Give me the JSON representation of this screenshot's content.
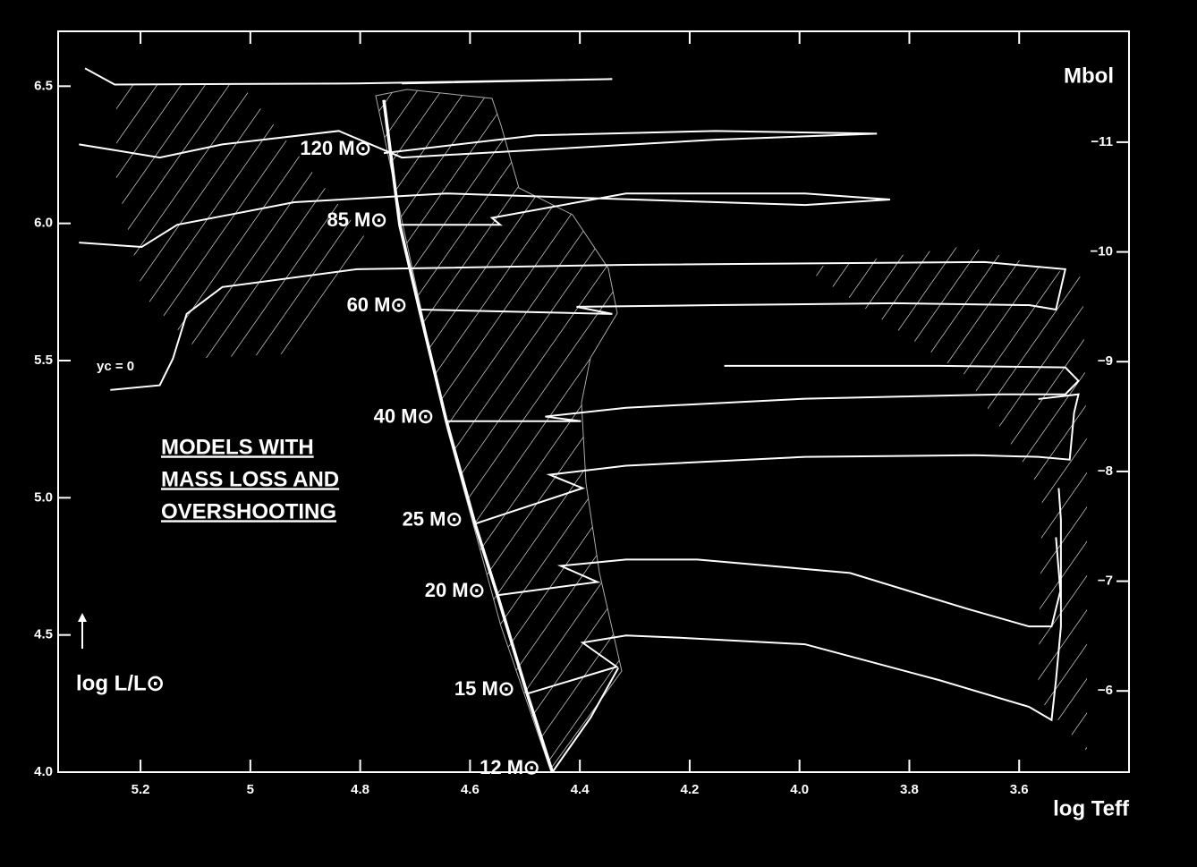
{
  "chart_data": {
    "type": "line",
    "x_label": "log Teff",
    "y_label": "log L/L⊙",
    "y2_label": "Mbol",
    "annotations": [
      "MODELS WITH",
      "MASS LOSS AND",
      "OVERSHOOTING",
      "yc = 0"
    ],
    "xlim": [
      5.35,
      3.4
    ],
    "xticks": [
      5.2,
      5.0,
      {
        "value": 4.8,
        "label": "4.8"
      },
      4.6,
      4.4,
      4.2,
      {
        "value": 4.0,
        "label": "4.0"
      },
      3.8,
      3.6
    ],
    "ylim": [
      4.0,
      6.7
    ],
    "yticks": [
      {
        "value": 4.0,
        "label": "4.0"
      },
      4.5,
      {
        "value": 5.0,
        "label": "5.0"
      },
      5.5,
      {
        "value": 6.0,
        "label": "6.0"
      },
      6.5
    ],
    "y2lim": [
      -5.26,
      -12.01
    ],
    "y2ticks": [
      {
        "value": -11,
        "label": "−11"
      },
      {
        "value": -10,
        "label": "−10"
      },
      {
        "value": -9,
        "label": "−9"
      },
      {
        "value": -8,
        "label": "−8"
      },
      {
        "value": -7,
        "label": "−7"
      },
      {
        "value": -6,
        "label": "−6"
      }
    ],
    "zams": {
      "x": [
        4.757,
        4.728,
        4.692,
        4.643,
        4.591,
        4.55,
        4.496,
        4.45
      ],
      "y": [
        6.45,
        5.995,
        5.686,
        5.279,
        4.905,
        4.645,
        4.286,
        4.0
      ]
    },
    "series": [
      {
        "name": "120 M⊙",
        "color": "#ffffff",
        "x": [
          4.757,
          4.48,
          4.153,
          3.859,
          4.153,
          4.724,
          4.839,
          5.051,
          5.165,
          5.312,
          null,
          5.301,
          5.247,
          4.806,
          4.341,
          4.724
        ],
        "y": [
          6.256,
          6.321,
          6.337,
          6.327,
          6.305,
          6.24,
          6.337,
          6.288,
          6.24,
          6.288,
          null,
          6.565,
          6.506,
          6.51,
          6.526,
          6.51
        ]
      },
      {
        "name": "85 M⊙",
        "color": "#ffffff",
        "x": [
          4.728,
          4.545,
          4.56,
          4.316,
          3.99,
          3.835,
          3.99,
          4.643,
          4.92,
          5.133,
          5.198,
          5.312
        ],
        "y": [
          5.995,
          5.995,
          6.02,
          6.109,
          6.109,
          6.087,
          6.067,
          6.109,
          6.077,
          5.995,
          5.914,
          5.93
        ]
      },
      {
        "name": "60 M⊙",
        "color": "#ffffff",
        "x": [
          4.692,
          4.341,
          4.406,
          4.153,
          3.827,
          3.582,
          3.533,
          3.516,
          3.663,
          4.316,
          4.806,
          5.051,
          5.116,
          5.141,
          5.165,
          5.255
        ],
        "y": [
          5.686,
          5.67,
          5.696,
          5.702,
          5.709,
          5.702,
          5.686,
          5.833,
          5.859,
          5.849,
          5.833,
          5.768,
          5.67,
          5.507,
          5.41,
          5.393
        ]
      },
      {
        "name": "40 M⊙",
        "color": "#ffffff",
        "x": [
          4.643,
          4.398,
          4.463,
          4.316,
          3.99,
          3.631,
          3.516,
          3.492,
          3.516,
          3.745,
          4.137
        ],
        "y": [
          5.279,
          5.279,
          5.296,
          5.328,
          5.361,
          5.377,
          5.377,
          5.426,
          5.475,
          5.481,
          5.481
        ]
      },
      {
        "name": "25 M⊙",
        "color": "#ffffff",
        "x": [
          4.591,
          4.395,
          4.455,
          4.316,
          3.99,
          3.68,
          3.565,
          3.508,
          3.5,
          3.492,
          3.565
        ],
        "y": [
          4.905,
          5.035,
          5.084,
          5.117,
          5.149,
          5.155,
          5.149,
          5.139,
          5.31,
          5.377,
          5.36
        ]
      },
      {
        "name": "20 M⊙",
        "color": "#ffffff",
        "x": [
          4.55,
          4.368,
          4.435,
          4.316,
          4.186,
          3.908,
          3.696,
          3.582,
          3.541,
          3.525,
          3.533
        ],
        "y": [
          4.645,
          4.693,
          4.752,
          4.775,
          4.775,
          4.726,
          4.596,
          4.531,
          4.531,
          4.66,
          4.856
        ]
      },
      {
        "name": "15 M⊙",
        "color": "#ffffff",
        "x": [
          4.496,
          4.333,
          4.395,
          4.316,
          4.218,
          3.99,
          3.745,
          3.582,
          3.541,
          3.533,
          3.524,
          3.524,
          3.528
        ],
        "y": [
          4.286,
          4.384,
          4.472,
          4.498,
          4.49,
          4.466,
          4.335,
          4.238,
          4.19,
          4.335,
          4.53,
          4.92,
          5.035
        ]
      },
      {
        "name": "12 M⊙",
        "color": "#ffffff",
        "x": [
          4.45,
          4.38,
          4.33
        ],
        "y": [
          4.0,
          4.2,
          4.38
        ]
      }
    ]
  }
}
